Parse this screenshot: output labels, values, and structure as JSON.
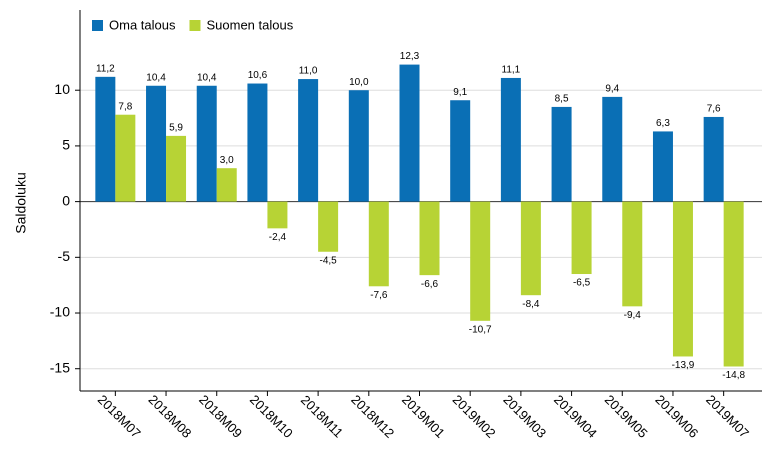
{
  "chart_data": {
    "type": "bar",
    "y_label": "Saldoluku",
    "categories": [
      "2018M07",
      "2018M08",
      "2018M09",
      "2018M10",
      "2018M11",
      "2018M12",
      "2019M01",
      "2019M02",
      "2019M03",
      "2019M04",
      "2019M05",
      "2019M06",
      "2019M07"
    ],
    "series": [
      {
        "name": "Oma talous",
        "color": "#0a6fb5",
        "values": [
          11.2,
          10.4,
          10.4,
          10.6,
          11.0,
          10.0,
          12.3,
          9.1,
          11.1,
          8.5,
          9.4,
          6.3,
          7.6
        ],
        "value_labels": [
          "11,2",
          "10,4",
          "10,4",
          "10,6",
          "11,0",
          "10,0",
          "12,3",
          "9,1",
          "11,1",
          "8,5",
          "9,4",
          "6,3",
          "7,6"
        ]
      },
      {
        "name": "Suomen talous",
        "color": "#b7d335",
        "values": [
          7.8,
          5.9,
          3.0,
          -2.4,
          -4.5,
          -7.6,
          -6.6,
          -10.7,
          -8.4,
          -6.5,
          -9.4,
          -13.9,
          -14.8
        ],
        "value_labels": [
          "7,8",
          "5,9",
          "3,0",
          "-2,4",
          "-4,5",
          "-7,6",
          "-6,6",
          "-10,7",
          "-8,4",
          "-6,5",
          "-9,4",
          "-13,9",
          "-14,8"
        ]
      }
    ],
    "ylim": [
      -17,
      17.2
    ],
    "yticks": [
      -15,
      -10,
      -5,
      0,
      5,
      10
    ],
    "grid": true,
    "legend": "top-left"
  }
}
